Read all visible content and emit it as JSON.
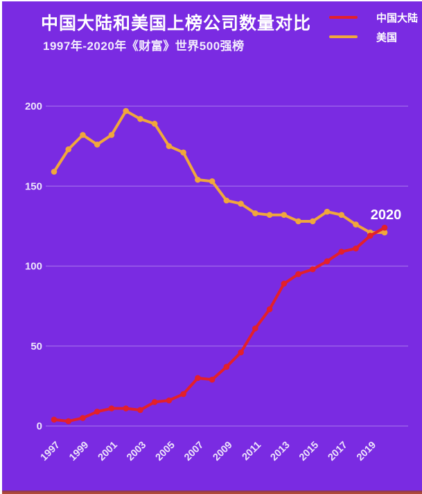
{
  "page": {
    "background_color": "#7A2BE2",
    "border_color": "#FFFFFF",
    "bottom_strip_color": "#B04A38"
  },
  "header": {
    "title": "中国大陆和美国上榜公司数量对比",
    "subtitle": "1997年-2020年《财富》世界500强榜"
  },
  "legend": {
    "items": [
      {
        "label": "中国大陆",
        "color": "#E3202B"
      },
      {
        "label": "美国",
        "color": "#F0A73C"
      }
    ]
  },
  "chart_data": {
    "type": "line",
    "title": "中国大陆和美国上榜公司数量对比",
    "subtitle": "1997年-2020年《财富》世界500强榜",
    "x": [
      1997,
      1998,
      1999,
      2000,
      2001,
      2002,
      2003,
      2004,
      2005,
      2006,
      2007,
      2008,
      2009,
      2010,
      2011,
      2012,
      2013,
      2014,
      2015,
      2016,
      2017,
      2018,
      2019,
      2020
    ],
    "series": [
      {
        "name": "美国",
        "color": "#F0A73C",
        "values": [
          159,
          173,
          182,
          176,
          182,
          197,
          192,
          189,
          175,
          171,
          154,
          153,
          141,
          139,
          133,
          132,
          132,
          128,
          128,
          134,
          132,
          126,
          121,
          121
        ]
      },
      {
        "name": "中国大陆",
        "color": "#E3202B",
        "values": [
          4,
          3,
          5,
          9,
          11,
          11,
          10,
          15,
          16,
          20,
          30,
          29,
          37,
          46,
          61,
          73,
          89,
          95,
          98,
          103,
          109,
          111,
          119,
          124
        ]
      }
    ],
    "yticks": [
      0,
      50,
      100,
      150,
      200
    ],
    "xtick_labels": [
      "1997",
      "1999",
      "2001",
      "2003",
      "2005",
      "2007",
      "2009",
      "2011",
      "2013",
      "2015",
      "2017",
      "2019"
    ],
    "ylim": [
      0,
      210
    ],
    "grid": true,
    "legend_position": "top-right",
    "annotation": {
      "text": "2020",
      "at_year": 2020
    }
  }
}
